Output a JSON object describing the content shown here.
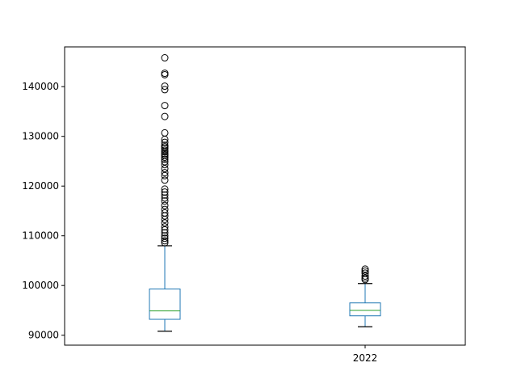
{
  "chart_data": {
    "type": "box",
    "title": "",
    "xlabel": "",
    "ylabel": "",
    "ylim": [
      88000,
      148000
    ],
    "yticks": [
      90000,
      100000,
      110000,
      120000,
      130000,
      140000
    ],
    "ytick_labels": [
      "90000",
      "100000",
      "110000",
      "120000",
      "130000",
      "140000"
    ],
    "categories": [
      "",
      "2022"
    ],
    "series": [
      {
        "label": "",
        "whisker_low": 90800,
        "q1": 93200,
        "median": 94900,
        "q3": 99300,
        "whisker_high": 108000,
        "outliers": [
          145800,
          142700,
          142400,
          140100,
          139400,
          136200,
          134000,
          130700,
          129400,
          128800,
          128200,
          127900,
          127600,
          127200,
          126900,
          126500,
          126200,
          125800,
          125400,
          124900,
          124300,
          123500,
          122700,
          122100,
          121200,
          119400,
          118800,
          118200,
          117600,
          117000,
          116100,
          115300,
          114600,
          114000,
          113300,
          112600,
          111800,
          111200,
          110600,
          110000,
          109500,
          109000,
          108600
        ]
      },
      {
        "label": "2022",
        "whisker_low": 91700,
        "q1": 93900,
        "median": 95000,
        "q3": 96500,
        "whisker_high": 100400,
        "outliers": [
          103300,
          102900,
          102500,
          101900,
          101500,
          101200
        ]
      }
    ],
    "grid": false,
    "legend": "none",
    "colors": {
      "box": "#1f77b4",
      "median": "#2ca02c",
      "whisker_cap": "#000000",
      "flier": "#000000",
      "axes": "#000000"
    }
  }
}
